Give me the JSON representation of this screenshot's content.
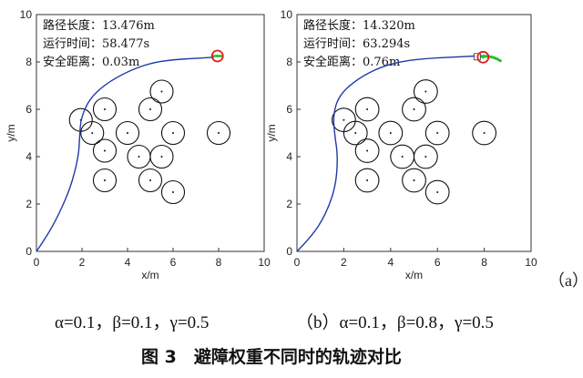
{
  "chart_data": [
    {
      "type": "line",
      "xlabel": "x/m",
      "ylabel": "y/m",
      "xlim": [
        0,
        10
      ],
      "ylim": [
        0,
        10
      ],
      "xticks": [
        "0",
        "2",
        "4",
        "6",
        "8",
        "10"
      ],
      "yticks": [
        "0",
        "2",
        "4",
        "6",
        "8",
        "10"
      ],
      "annotations": [
        "路径长度：13.476m",
        "运行时间：58.477s",
        "安全距离：0.03m"
      ],
      "obstacles": [
        [
          1.95,
          5.55
        ],
        [
          3.0,
          6.0
        ],
        [
          2.45,
          5.0
        ],
        [
          3.0,
          4.25
        ],
        [
          4.0,
          5.0
        ],
        [
          5.0,
          6.0
        ],
        [
          5.5,
          6.75
        ],
        [
          6.0,
          5.0
        ],
        [
          4.5,
          4.0
        ],
        [
          5.5,
          4.0
        ],
        [
          3.0,
          3.0
        ],
        [
          5.0,
          3.0
        ],
        [
          6.0,
          2.5
        ],
        [
          8.0,
          5.0
        ]
      ],
      "series": [
        {
          "values": [
            [
              0,
              0
            ],
            [
              0.5,
              0.7
            ],
            [
              1.0,
              1.6
            ],
            [
              1.5,
              2.7
            ],
            [
              1.85,
              4.0
            ],
            [
              1.9,
              4.9
            ],
            [
              1.95,
              5.6
            ],
            [
              2.3,
              6.4
            ],
            [
              3.0,
              7.05
            ],
            [
              4.0,
              7.6
            ],
            [
              5.0,
              7.95
            ],
            [
              6.0,
              8.1
            ],
            [
              7.0,
              8.15
            ],
            [
              7.8,
              8.2
            ]
          ],
          "color": "#1f3aa6"
        }
      ],
      "goal": [
        7.95,
        8.25
      ]
    },
    {
      "type": "line",
      "xlabel": "x/m",
      "ylabel": "y/m",
      "xlim": [
        0,
        10
      ],
      "ylim": [
        0,
        10
      ],
      "xticks": [
        "0",
        "2",
        "4",
        "6",
        "8",
        "10"
      ],
      "yticks": [
        "0",
        "2",
        "4",
        "6",
        "8",
        "10"
      ],
      "annotations": [
        "路径长度：14.320m",
        "运行时间：63.294s",
        "安全距离：0.76m"
      ],
      "obstacles": [
        [
          2.0,
          5.55
        ],
        [
          3.0,
          6.0
        ],
        [
          2.5,
          5.0
        ],
        [
          3.0,
          4.25
        ],
        [
          4.0,
          5.0
        ],
        [
          5.0,
          6.0
        ],
        [
          5.5,
          6.75
        ],
        [
          6.0,
          5.0
        ],
        [
          4.5,
          4.0
        ],
        [
          5.5,
          4.0
        ],
        [
          3.0,
          3.0
        ],
        [
          5.0,
          3.0
        ],
        [
          6.0,
          2.5
        ],
        [
          8.0,
          5.0
        ]
      ],
      "series": [
        {
          "values": [
            [
              0,
              0
            ],
            [
              0.6,
              0.6
            ],
            [
              1.2,
              1.5
            ],
            [
              1.65,
              2.7
            ],
            [
              1.75,
              4.0
            ],
            [
              1.6,
              5.0
            ],
            [
              1.55,
              5.8
            ],
            [
              1.8,
              6.6
            ],
            [
              2.6,
              7.3
            ],
            [
              3.6,
              7.8
            ],
            [
              4.6,
              8.05
            ],
            [
              5.6,
              8.15
            ],
            [
              6.6,
              8.2
            ],
            [
              7.6,
              8.25
            ]
          ],
          "color": "#1f3aa6"
        }
      ],
      "goal": [
        7.95,
        8.2
      ]
    }
  ],
  "panel_label": "（a）",
  "weights": [
    {
      "text": "α=0.1，β=0.1，γ=0.5"
    },
    {
      "text": "（b）α=0.1，β=0.8，γ=0.5"
    }
  ],
  "caption": "图 3　避障权重不同时的轨迹对比"
}
